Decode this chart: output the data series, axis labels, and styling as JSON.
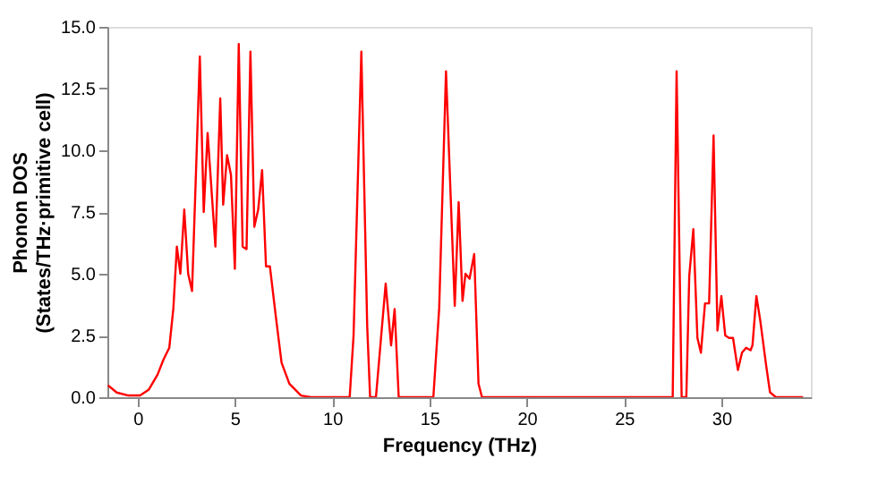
{
  "chart_data": {
    "type": "line",
    "xlabel": "Frequency (THz)",
    "ylabel": "Phonon DOS\n(States/THz·primitive cell)",
    "x": [
      -1.52,
      -1.07,
      -0.47,
      0.13,
      0.58,
      1.03,
      1.33,
      1.63,
      1.84,
      2.02,
      2.2,
      2.4,
      2.6,
      2.8,
      3.2,
      3.4,
      3.6,
      4.0,
      4.25,
      4.4,
      4.6,
      4.8,
      5.0,
      5.2,
      5.4,
      5.6,
      5.8,
      6.0,
      6.2,
      6.4,
      6.6,
      6.8,
      7.1,
      7.4,
      7.8,
      8.4,
      8.9,
      10.9,
      11.1,
      11.5,
      11.8,
      11.95,
      12.25,
      12.75,
      13.03,
      13.21,
      13.42,
      15.2,
      15.5,
      15.85,
      16.3,
      16.5,
      16.7,
      16.85,
      17.06,
      17.3,
      17.52,
      17.7,
      27.5,
      27.7,
      27.96,
      28.2,
      28.35,
      28.56,
      28.77,
      28.95,
      29.16,
      29.37,
      29.6,
      29.8,
      30.0,
      30.2,
      30.4,
      30.6,
      30.85,
      31.06,
      31.27,
      31.5,
      31.6,
      31.8,
      32.0,
      32.3,
      32.5,
      32.8,
      34.2
    ],
    "series": [
      {
        "color": "#ff0000",
        "values": [
          0.48,
          0.19,
          0.07,
          0.07,
          0.31,
          0.92,
          1.52,
          2.0,
          3.6,
          6.1,
          5.0,
          7.6,
          5.0,
          4.3,
          13.8,
          7.5,
          10.7,
          6.1,
          12.1,
          7.8,
          9.8,
          9.0,
          5.2,
          14.3,
          6.1,
          6.0,
          14.0,
          6.9,
          7.6,
          9.2,
          5.3,
          5.3,
          3.3,
          1.4,
          0.55,
          0.07,
          0,
          0,
          2.5,
          14.0,
          2.9,
          0,
          0,
          4.6,
          2.1,
          3.57,
          0,
          0,
          3.6,
          13.2,
          3.7,
          7.9,
          3.9,
          5.0,
          4.8,
          5.8,
          0.55,
          0,
          0,
          13.2,
          0,
          0,
          4.9,
          6.8,
          2.4,
          1.8,
          3.8,
          3.8,
          10.6,
          2.7,
          4.1,
          2.5,
          2.4,
          2.4,
          1.1,
          1.8,
          2.0,
          1.9,
          2.1,
          4.1,
          3.1,
          1.3,
          0.2,
          0,
          0
        ]
      }
    ],
    "xlim": [
      -1.55,
      34.6
    ],
    "xticks": [
      0,
      5,
      10,
      15,
      20,
      25,
      30
    ],
    "ylim": [
      0,
      15
    ],
    "yticks": [
      {
        "value": 0,
        "label": "0.0"
      },
      {
        "value": 2.5,
        "label": "2.5"
      },
      {
        "value": 5,
        "label": "5.0"
      },
      {
        "value": 7.5,
        "label": "7.5"
      },
      {
        "value": 10,
        "label": "10.0"
      },
      {
        "value": 12.5,
        "label": "12.5"
      },
      {
        "value": 15,
        "label": "15.0"
      }
    ],
    "grid": false,
    "line_style": "solid",
    "marker": "none"
  }
}
